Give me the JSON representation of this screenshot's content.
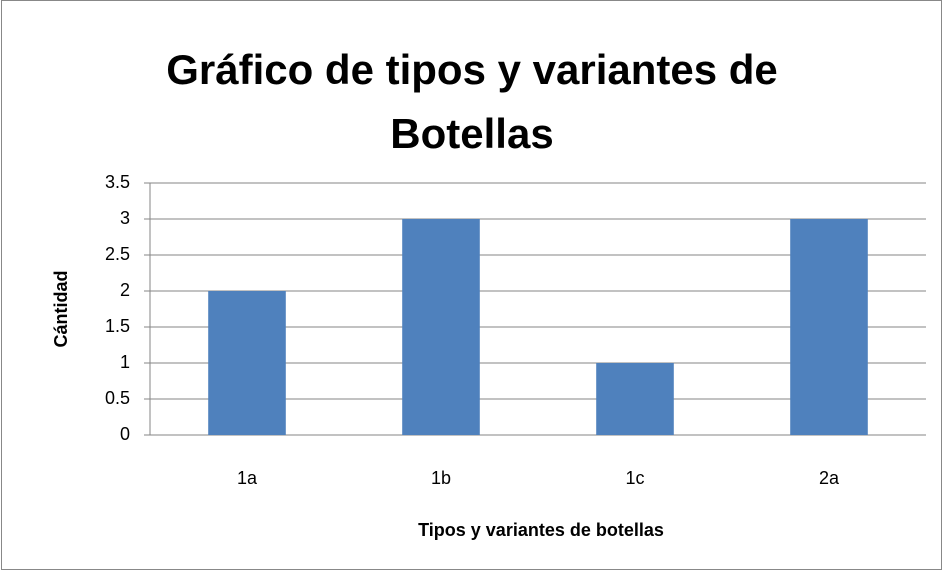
{
  "chart_data": {
    "type": "bar",
    "title": "Gráfico de tipos y variantes de Botellas",
    "xlabel": "Tipos y variantes de botellas",
    "ylabel": "Cántidad",
    "categories": [
      "1a",
      "1b",
      "1c",
      "2a"
    ],
    "values": [
      2,
      3,
      1,
      3
    ],
    "color": "#4f81bd",
    "ylim": [
      0,
      3.5
    ],
    "yticks": [
      0,
      0.5,
      1,
      1.5,
      2,
      2.5,
      3,
      3.5
    ],
    "grid": true
  }
}
